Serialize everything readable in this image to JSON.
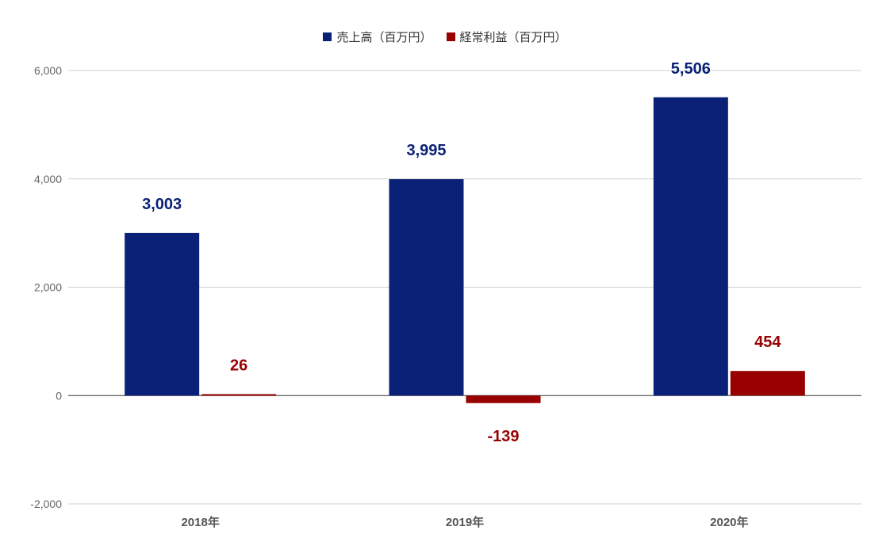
{
  "chart_data": {
    "type": "bar",
    "categories": [
      "2018年",
      "2019年",
      "2020年"
    ],
    "series": [
      {
        "name": "売上高（百万円）",
        "values": [
          3003,
          3995,
          5506
        ],
        "color": "#0b2177",
        "labels": [
          "3,003",
          "3,995",
          "5,506"
        ]
      },
      {
        "name": "経常利益（百万円）",
        "values": [
          26,
          -139,
          454
        ],
        "color": "#990000",
        "labels": [
          "26",
          "-139",
          "454"
        ]
      }
    ],
    "yticks": [
      -2000,
      0,
      2000,
      4000,
      6000
    ],
    "ytick_labels": [
      "-2,000",
      "0",
      "2,000",
      "4,000",
      "6,000"
    ],
    "ylim": [
      -2000,
      6000
    ],
    "grid": true,
    "legend_position": "top-center"
  }
}
